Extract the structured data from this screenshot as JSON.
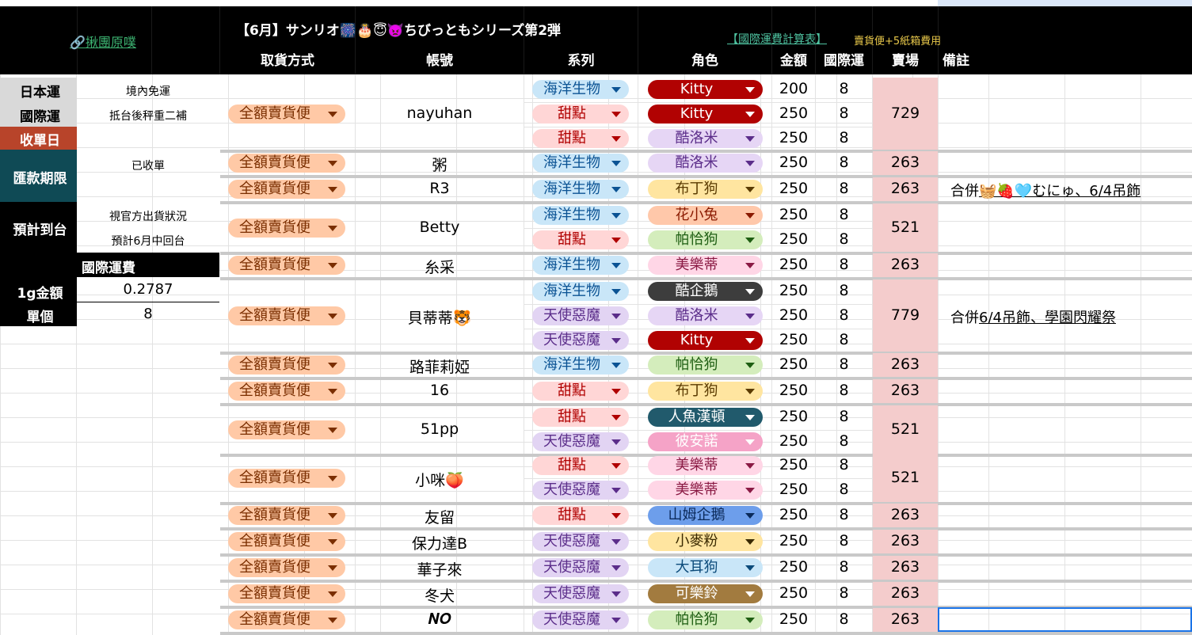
{
  "header": {
    "link_icon": "🔗",
    "link_text": "揪團原噗",
    "title": "【6月】サンリオ🎆🎂😇👿ちびっともシリーズ第2弾",
    "calc_link": "【國際運費計算表】",
    "calc_note": "賣貨便+5紙箱費用",
    "columns": [
      "取貨方式",
      "帳號",
      "系列",
      "角色",
      "金額",
      "國際運",
      "賣場",
      "備註"
    ]
  },
  "left_panel": {
    "jp_shipping_label": "日本運",
    "jp_shipping_value": "境內免運",
    "intl_shipping_label": "國際運",
    "intl_shipping_value": "抵台後秤重二補",
    "close_date_label": "收單日",
    "deadline_label": "匯款期限",
    "deadline_value": "已收單",
    "eta_label": "預計到台",
    "eta_value_1": "視官方出貨狀況",
    "eta_value_2": "預計6月中回台",
    "intl_fee_header": "國際運費",
    "per_gram_label": "1g金額",
    "per_gram_value": "0.2787",
    "per_item_label": "單個",
    "per_item_value": "8"
  },
  "colors": {
    "series": {
      "海洋生物": [
        "#c9e6f8",
        "#0b5394"
      ],
      "甜點": [
        "#ffd6d6",
        "#b00000"
      ],
      "天使惡魔": [
        "#e2d4f3",
        "#5b2d8a"
      ]
    },
    "characters": {
      "Kitty": [
        "#b10202",
        "#ffffff"
      ],
      "酷洛米": [
        "#e6d6f5",
        "#5b2d8a"
      ],
      "布丁狗": [
        "#ffe5a0",
        "#5a3a00"
      ],
      "花小兔": [
        "#ffc8aa",
        "#8a1a00"
      ],
      "帕恰狗": [
        "#d4edbc",
        "#1e5e12"
      ],
      "美樂蒂": [
        "#ffd6e6",
        "#8a1a44"
      ],
      "酷企鵝": [
        "#3d3d3d",
        "#ffffff"
      ],
      "人魚漢頓": [
        "#215a6c",
        "#ffffff"
      ],
      "彼安諾": [
        "#f5a3c7",
        "#ffffff"
      ],
      "山姆企鵝": [
        "#6d9eeb",
        "#0b2a5a"
      ],
      "小麥粉": [
        "#ffe5a0",
        "#3a2a00"
      ],
      "大耳狗": [
        "#c9e6f8",
        "#0b4a7a"
      ],
      "可樂鈴": [
        "#a27b3f",
        "#ffffff"
      ]
    }
  },
  "get_method": "全額賣貨便",
  "groups": [
    {
      "account": "nayuhan",
      "venue": "729",
      "note": "",
      "items": [
        {
          "series": "海洋生物",
          "character": "Kitty",
          "price": "200",
          "intl": "8"
        },
        {
          "series": "甜點",
          "character": "Kitty",
          "price": "250",
          "intl": "8"
        },
        {
          "series": "甜點",
          "character": "酷洛米",
          "price": "250",
          "intl": "8"
        }
      ]
    },
    {
      "account": "粥",
      "venue": "263",
      "note": "",
      "items": [
        {
          "series": "海洋生物",
          "character": "酷洛米",
          "price": "250",
          "intl": "8"
        }
      ]
    },
    {
      "account": "R3",
      "venue": "263",
      "note": "合併🧺🍓🩵むにゅ、6/4吊飾",
      "items": [
        {
          "series": "海洋生物",
          "character": "布丁狗",
          "price": "250",
          "intl": "8"
        }
      ]
    },
    {
      "account": "Betty",
      "venue": "521",
      "note": "",
      "items": [
        {
          "series": "海洋生物",
          "character": "花小兔",
          "price": "250",
          "intl": "8"
        },
        {
          "series": "甜點",
          "character": "帕恰狗",
          "price": "250",
          "intl": "8"
        }
      ]
    },
    {
      "account": "糸采",
      "venue": "263",
      "note": "",
      "items": [
        {
          "series": "海洋生物",
          "character": "美樂蒂",
          "price": "250",
          "intl": "8"
        }
      ]
    },
    {
      "account": "貝蒂蒂🐯",
      "venue": "779",
      "note": "合併6/4吊飾、學園閃耀祭",
      "items": [
        {
          "series": "海洋生物",
          "character": "酷企鵝",
          "price": "250",
          "intl": "8"
        },
        {
          "series": "天使惡魔",
          "character": "酷洛米",
          "price": "250",
          "intl": "8"
        },
        {
          "series": "天使惡魔",
          "character": "Kitty",
          "price": "250",
          "intl": "8"
        }
      ]
    },
    {
      "account": "路菲莉婭",
      "venue": "263",
      "note": "",
      "items": [
        {
          "series": "海洋生物",
          "character": "帕恰狗",
          "price": "250",
          "intl": "8"
        }
      ]
    },
    {
      "account": "16",
      "venue": "263",
      "note": "",
      "items": [
        {
          "series": "甜點",
          "character": "布丁狗",
          "price": "250",
          "intl": "8"
        }
      ]
    },
    {
      "account": "51pp",
      "venue": "521",
      "note": "",
      "items": [
        {
          "series": "甜點",
          "character": "人魚漢頓",
          "price": "250",
          "intl": "8"
        },
        {
          "series": "天使惡魔",
          "character": "彼安諾",
          "price": "250",
          "intl": "8"
        }
      ]
    },
    {
      "account": "小咪🍑",
      "venue": "521",
      "note": "",
      "items": [
        {
          "series": "甜點",
          "character": "美樂蒂",
          "price": "250",
          "intl": "8"
        },
        {
          "series": "天使惡魔",
          "character": "美樂蒂",
          "price": "250",
          "intl": "8"
        }
      ]
    },
    {
      "account": "友留",
      "venue": "263",
      "note": "",
      "items": [
        {
          "series": "甜點",
          "character": "山姆企鵝",
          "price": "250",
          "intl": "8"
        }
      ]
    },
    {
      "account": "保力達B",
      "venue": "263",
      "note": "",
      "items": [
        {
          "series": "天使惡魔",
          "character": "小麥粉",
          "price": "250",
          "intl": "8"
        }
      ]
    },
    {
      "account": "華子來",
      "venue": "263",
      "note": "",
      "items": [
        {
          "series": "天使惡魔",
          "character": "大耳狗",
          "price": "250",
          "intl": "8"
        }
      ]
    },
    {
      "account": "冬犬",
      "venue": "263",
      "note": "",
      "items": [
        {
          "series": "天使惡魔",
          "character": "可樂鈴",
          "price": "250",
          "intl": "8"
        }
      ]
    },
    {
      "account": "𝑵𝑶",
      "venue": "263",
      "note": "",
      "items": [
        {
          "series": "天使惡魔",
          "character": "帕恰狗",
          "price": "250",
          "intl": "8"
        }
      ]
    }
  ]
}
